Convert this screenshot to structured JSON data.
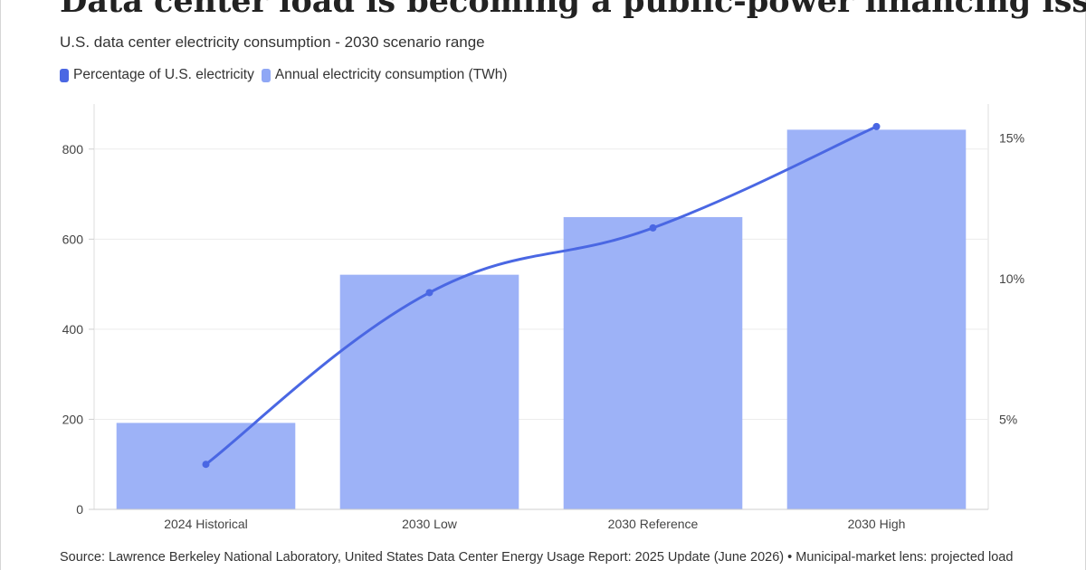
{
  "header": {
    "title": "Data center load is becoming a public-power financing issue",
    "subtitle": "U.S. data center electricity consumption - 2030 scenario range"
  },
  "legend": [
    {
      "label": "Percentage of U.S. electricity",
      "color": "#4a67e3"
    },
    {
      "label": "Annual electricity consumption (TWh)",
      "color": "#8fa7f5"
    }
  ],
  "footer": {
    "source": "Source: Lawrence Berkeley National Laboratory, United States Data Center Energy Usage Report: 2025 Update (June 2026) • Municipal-market lens: projected load"
  },
  "chart_data": {
    "type": "bar",
    "categories": [
      "2024 Historical",
      "2030 Low",
      "2030 Reference",
      "2030 High"
    ],
    "series": [
      {
        "name": "Annual electricity consumption (TWh)",
        "type": "bar",
        "axis": "left",
        "color": "#9db2f7",
        "values": [
          192,
          521,
          649,
          843
        ]
      },
      {
        "name": "Percentage of U.S. electricity",
        "type": "line",
        "axis": "right",
        "color": "#4a67e3",
        "values": [
          3.4,
          9.5,
          11.8,
          15.4
        ]
      }
    ],
    "y_left": {
      "ticks": [
        0,
        200,
        400,
        600,
        800
      ],
      "tick_labels": [
        "0",
        "200",
        "400",
        "600",
        "800"
      ],
      "range": [
        0,
        900
      ]
    },
    "y_right": {
      "ticks": [
        5,
        10,
        15
      ],
      "tick_labels": [
        "5%",
        "10%",
        "15%"
      ],
      "range": [
        1.8,
        16.2
      ]
    },
    "grid": true,
    "legend_position": "top-left"
  }
}
